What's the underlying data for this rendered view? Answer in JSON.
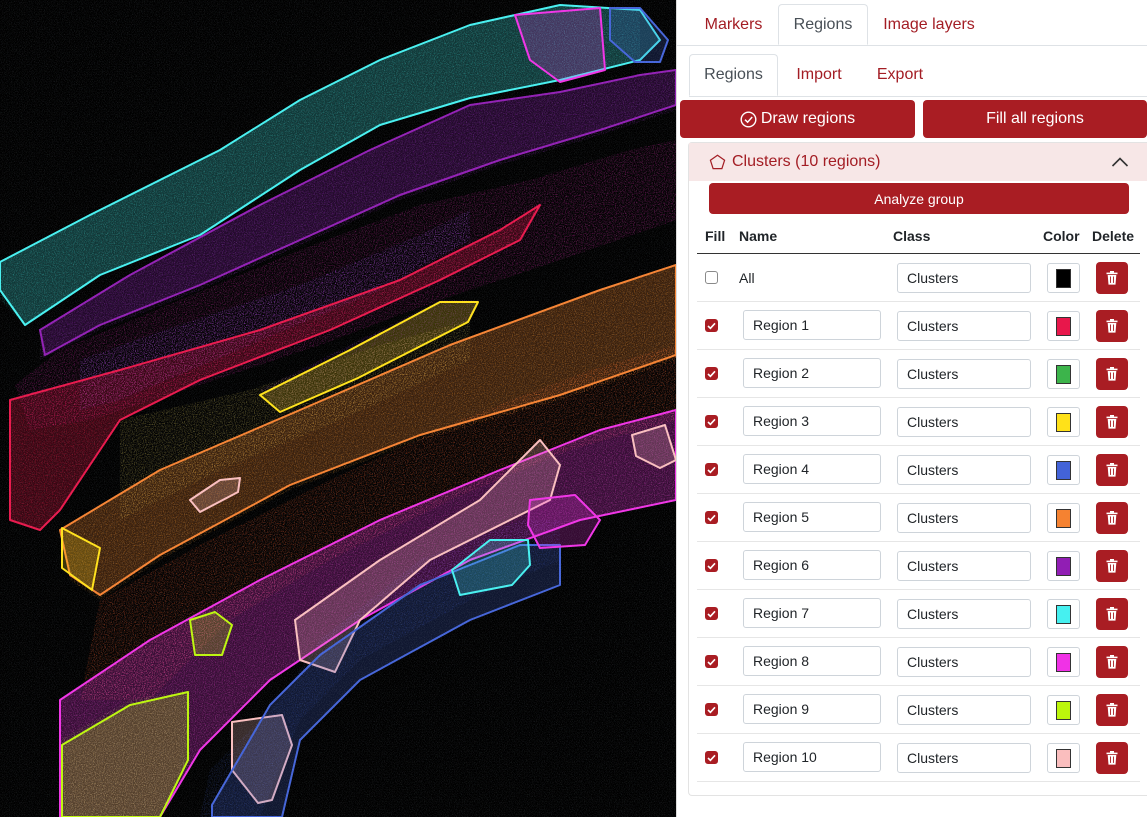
{
  "top_tabs": [
    "Markers",
    "Regions",
    "Image layers"
  ],
  "sub_tabs": [
    "Regions",
    "Import",
    "Export"
  ],
  "buttons": {
    "draw_regions": "Draw regions",
    "fill_all": "Fill all regions",
    "analyze_group": "Analyze group"
  },
  "group": {
    "title": "Clusters (10 regions)"
  },
  "table": {
    "headers": {
      "fill": "Fill",
      "name": "Name",
      "class": "Class",
      "color": "Color",
      "delete": "Delete"
    },
    "all_row": {
      "name": "All",
      "class": "Clusters",
      "color": "#000000",
      "filled": false
    },
    "rows": [
      {
        "name": "Region 1",
        "class": "Clusters",
        "color": "#e8174b",
        "filled": true
      },
      {
        "name": "Region 2",
        "class": "Clusters",
        "color": "#3cb44b",
        "filled": true
      },
      {
        "name": "Region 3",
        "class": "Clusters",
        "color": "#ffe119",
        "filled": true
      },
      {
        "name": "Region 4",
        "class": "Clusters",
        "color": "#4363d8",
        "filled": true
      },
      {
        "name": "Region 5",
        "class": "Clusters",
        "color": "#f58231",
        "filled": true
      },
      {
        "name": "Region 6",
        "class": "Clusters",
        "color": "#911eb4",
        "filled": true
      },
      {
        "name": "Region 7",
        "class": "Clusters",
        "color": "#46f0f0",
        "filled": true
      },
      {
        "name": "Region 8",
        "class": "Clusters",
        "color": "#f032e6",
        "filled": true
      },
      {
        "name": "Region 9",
        "class": "Clusters",
        "color": "#bcf60c",
        "filled": true
      },
      {
        "name": "Region 10",
        "class": "Clusters",
        "color": "#fabebe",
        "filled": true
      }
    ]
  },
  "accent_color": "#a91d23",
  "icons": {
    "draw": "check-circle-icon",
    "group": "pentagon-icon",
    "collapse": "chevron-up-icon",
    "delete": "trash-icon",
    "checkbox": "check-icon"
  }
}
